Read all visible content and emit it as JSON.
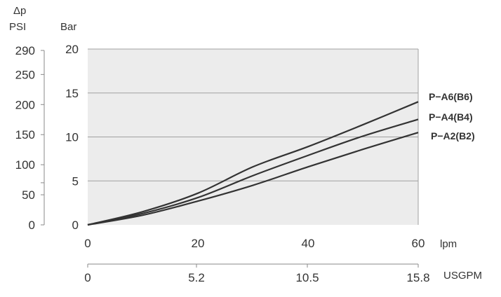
{
  "chart_data": {
    "type": "line",
    "title": "",
    "delta_symbol": "Δp",
    "y_unit_psi": "PSI",
    "y_unit_bar": "Bar",
    "x_unit_lpm": "lpm",
    "x_unit_usgpm": "USGPM",
    "x_ticks_lpm": [
      "0",
      "20",
      "40",
      "60"
    ],
    "x_ticks_usgpm": [
      "0",
      "5.2",
      "10.5",
      "15.8"
    ],
    "y_ticks_bar": [
      "0",
      "5",
      "10",
      "15",
      "20"
    ],
    "y_ticks_psi": [
      "0",
      "50",
      "100",
      "150",
      "200",
      "250",
      "290"
    ],
    "xlim": [
      0,
      60
    ],
    "ylim": [
      0,
      20
    ],
    "grid": true,
    "colors": {
      "plot_bg": "#ececec",
      "line": "#333333",
      "grid": "#a0a0a0"
    },
    "x": [
      0,
      10,
      20,
      30,
      40,
      50,
      60
    ],
    "series": [
      {
        "name": "P−A6(B6)",
        "values": [
          0,
          1.5,
          3.6,
          6.6,
          8.9,
          11.4,
          14.0
        ]
      },
      {
        "name": "P−A4(B4)",
        "values": [
          0,
          1.3,
          3.1,
          5.6,
          7.9,
          10.1,
          12.0
        ]
      },
      {
        "name": "P−A2(B2)",
        "values": [
          0,
          1.1,
          2.7,
          4.5,
          6.6,
          8.6,
          10.5
        ]
      }
    ]
  }
}
